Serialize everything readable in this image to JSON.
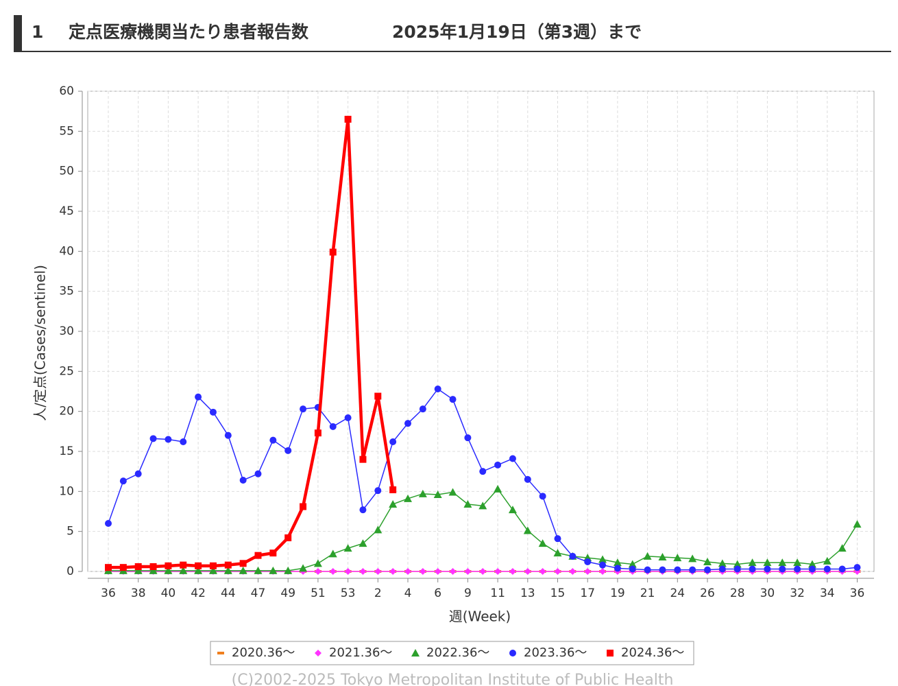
{
  "header": {
    "number": "1",
    "title": "定点医療機関当たり患者報告数",
    "date": "2025年1月19日（第3週）まで"
  },
  "chart_data": {
    "type": "line",
    "y_label": "人/定点(Cases/sentinel)",
    "x_label": "週(Week)",
    "footer": "(C)2002-2025 Tokyo Metropolitan Institute of Public Health",
    "categories": [
      "36",
      null,
      "38",
      null,
      "40",
      null,
      "42",
      null,
      "44",
      null,
      "47",
      null,
      "49",
      null,
      "51",
      null,
      "53",
      null,
      "2",
      null,
      "4",
      null,
      "6",
      null,
      "9",
      null,
      "11",
      null,
      "13",
      null,
      "15",
      null,
      "17",
      null,
      "19",
      null,
      "21",
      null,
      "24",
      null,
      "26",
      null,
      "28",
      null,
      "30",
      null,
      "32",
      null,
      "34",
      null,
      "36"
    ],
    "ylim": [
      0,
      60
    ],
    "yticks": [
      0,
      5,
      10,
      15,
      20,
      25,
      30,
      35,
      40,
      45,
      50,
      55,
      60
    ],
    "grid": true,
    "legend": "bottom",
    "series": [
      {
        "name": "2020.36～",
        "color": "#f07f1e",
        "marker": "dash",
        "values": [
          0,
          0,
          0,
          0,
          0,
          0,
          0,
          0,
          0,
          0,
          0,
          0,
          0,
          0,
          0,
          0,
          0,
          0,
          0,
          0,
          0,
          0,
          0,
          0,
          0,
          0,
          0,
          0,
          0,
          0,
          0,
          0,
          0,
          0,
          0,
          0,
          0,
          0,
          0,
          0,
          0,
          0,
          0,
          0,
          0,
          0,
          0,
          0,
          0,
          0,
          0
        ]
      },
      {
        "name": "2021.36～",
        "color": "#ff33ff",
        "marker": "diamond",
        "values": [
          0,
          0,
          0,
          0,
          0,
          0,
          0,
          0,
          0,
          0,
          0,
          0,
          0,
          0,
          0,
          0,
          0,
          0,
          0,
          0,
          0,
          0,
          0,
          0,
          0,
          0,
          0,
          0,
          0,
          0,
          0,
          0,
          0,
          0,
          0,
          0,
          0,
          0,
          0,
          0,
          0,
          0,
          0,
          0,
          0,
          0,
          0,
          0,
          0,
          0,
          0
        ]
      },
      {
        "name": "2022.36～",
        "color": "#2ca02c",
        "marker": "triangle",
        "values": [
          0.1,
          0.1,
          0.1,
          0.1,
          0.1,
          0.1,
          0.1,
          0.1,
          0.1,
          0.1,
          0.1,
          0.1,
          0.1,
          0.4,
          1.0,
          2.2,
          2.9,
          3.5,
          5.2,
          8.4,
          9.1,
          9.7,
          9.6,
          9.9,
          8.4,
          8.2,
          10.3,
          7.7,
          5.1,
          3.5,
          2.3,
          1.9,
          1.7,
          1.5,
          1.1,
          0.9,
          1.9,
          1.8,
          1.7,
          1.6,
          1.2,
          1.0,
          0.9,
          1.1,
          1.1,
          1.1,
          1.1,
          0.9,
          1.3,
          2.9,
          5.9
        ]
      },
      {
        "name": "2023.36～",
        "color": "#2a2aff",
        "marker": "circle",
        "values": [
          6,
          11.3,
          12.2,
          16.6,
          16.5,
          16.2,
          21.8,
          19.9,
          17,
          11.4,
          12.2,
          16.4,
          15.1,
          20.3,
          20.5,
          18.1,
          19.2,
          7.7,
          10.1,
          16.2,
          18.5,
          20.3,
          22.8,
          21.5,
          16.7,
          12.5,
          13.3,
          14.1,
          11.5,
          9.4,
          4.1,
          1.9,
          1.2,
          0.8,
          0.4,
          0.3,
          0.2,
          0.2,
          0.2,
          0.2,
          0.2,
          0.3,
          0.3,
          0.3,
          0.3,
          0.3,
          0.3,
          0.3,
          0.3,
          0.3,
          0.5
        ]
      },
      {
        "name": "2024.36～",
        "color": "#ff0000",
        "marker": "square",
        "values": [
          0.5,
          0.5,
          0.6,
          0.6,
          0.7,
          0.8,
          0.7,
          0.7,
          0.8,
          1.0,
          2.0,
          2.3,
          4.2,
          8.1,
          17.3,
          39.9,
          56.5,
          14.0,
          21.9,
          10.2,
          null,
          null,
          null,
          null,
          null,
          null,
          null,
          null,
          null,
          null,
          null,
          null,
          null,
          null,
          null,
          null,
          null,
          null,
          null,
          null,
          null,
          null,
          null,
          null,
          null,
          null,
          null,
          null,
          null,
          null,
          null
        ]
      }
    ]
  }
}
